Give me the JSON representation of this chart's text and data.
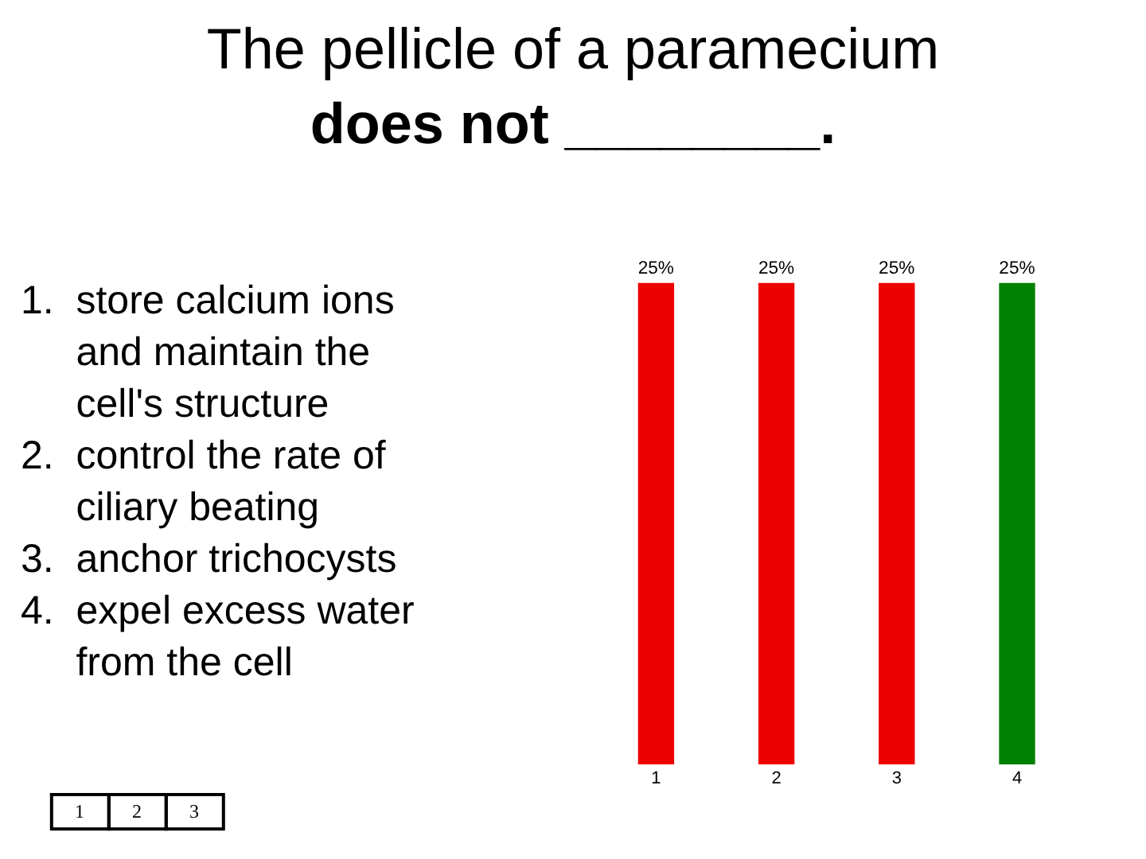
{
  "chart_data": {
    "type": "bar",
    "title": "The pellicle of a paramecium\ndoes not ________.",
    "categories": [
      "1",
      "2",
      "3",
      "4"
    ],
    "values": [
      25,
      25,
      25,
      25
    ],
    "colors": [
      "#ee0000",
      "#ee0000",
      "#ee0000",
      "#008000"
    ],
    "value_labels": [
      "25%",
      "25%",
      "25%",
      "25%"
    ],
    "annotations": [
      "1.  store calcium ions\n     and maintain the\n     cell's structure\n2.  control the rate of\n     ciliary beating\n3.  anchor trichocysts\n4.  expel excess water\n     from the cell",
      "1",
      "2",
      "3"
    ],
    "legend": false
  }
}
